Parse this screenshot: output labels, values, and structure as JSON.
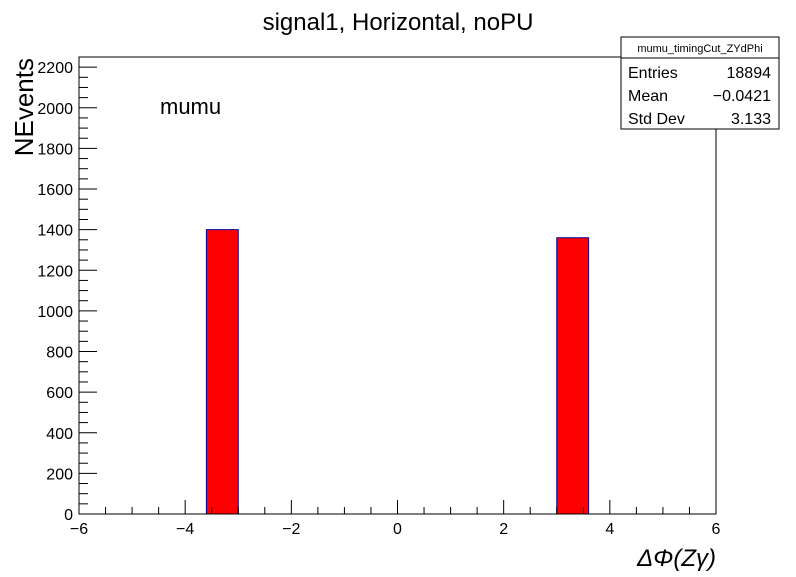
{
  "chart_data": {
    "type": "bar",
    "title": "signal1, Horizontal, noPU",
    "xlabel": "ΔΦ(Zγ)",
    "ylabel": "NEvents",
    "annotation": "mumu",
    "xlim": [
      -6,
      6
    ],
    "ylim": [
      0,
      2250
    ],
    "x_ticks": [
      -6,
      -4,
      -2,
      0,
      2,
      4,
      6
    ],
    "x_tick_labels": [
      "−6",
      "−4",
      "−2",
      "0",
      "2",
      "4",
      "6"
    ],
    "y_ticks": [
      0,
      200,
      400,
      600,
      800,
      1000,
      1200,
      1400,
      1600,
      1800,
      2000,
      2200
    ],
    "y_tick_labels": [
      "0",
      "200",
      "400",
      "600",
      "800",
      "1000",
      "1200",
      "1400",
      "1600",
      "1800",
      "2000",
      "2200"
    ],
    "bins": [
      {
        "x_low": -3.6,
        "x_high": -3.0,
        "value": 1400
      },
      {
        "x_low": 3.0,
        "x_high": 3.6,
        "value": 1360
      }
    ],
    "grid": false,
    "legend": "none",
    "stats_box": {
      "title": "mumu_timingCut_ZYdPhi",
      "rows": [
        {
          "label": "Entries",
          "value": "18894"
        },
        {
          "label": "Mean",
          "value": "−0.0421"
        },
        {
          "label": "Std Dev",
          "value": "3.133"
        }
      ]
    },
    "colors": {
      "bar_fill": "#ff0000",
      "bar_edge": "#000099",
      "axis": "#000000"
    }
  }
}
